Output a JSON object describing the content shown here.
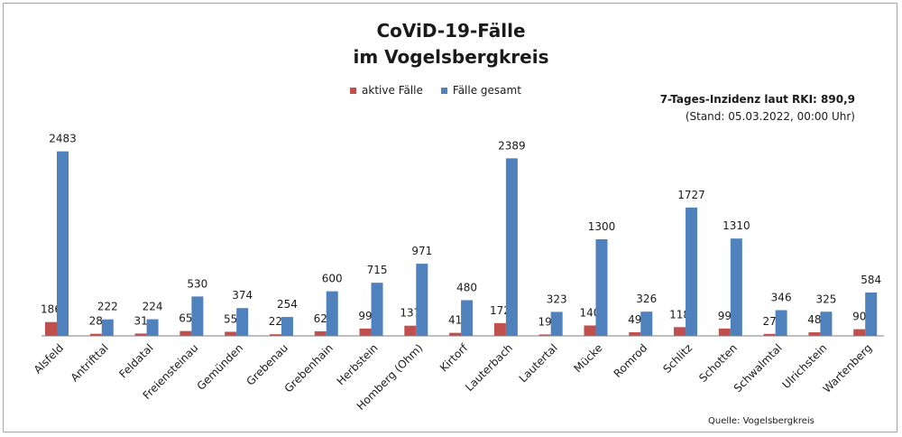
{
  "title_line1": "CoViD-19-Fälle",
  "title_line2": "im Vogelsbergkreis",
  "incidence_head": "7-Tages-Inzidenz laut RKI: 890,9",
  "incidence_stand": "(Stand: 05.03.2022, 00:00 Uhr)",
  "source": "Quelle: Vogelsbergkreis",
  "colors": {
    "active": "#c0504d",
    "total": "#4f81bd",
    "axis": "#7f7f7f"
  },
  "chart_data": {
    "type": "bar",
    "title": "CoViD-19-Fälle im Vogelsbergkreis",
    "legend_position": "top-center",
    "grid": false,
    "ylim": [
      0,
      2600
    ],
    "categories": [
      "Alsfeld",
      "Antrifttal",
      "Feldatal",
      "Freiensteinau",
      "Gemünden",
      "Grebenau",
      "Grebenhain",
      "Herbstein",
      "Homberg (Ohm)",
      "Kirtorf",
      "Lauterbach",
      "Lautertal",
      "Mücke",
      "Romrod",
      "Schlitz",
      "Schotten",
      "Schwalmtal",
      "Ulrichstein",
      "Wartenberg"
    ],
    "series": [
      {
        "name": "aktive Fälle",
        "values": [
          186,
          28,
          31,
          65,
          55,
          22,
          62,
          99,
          137,
          41,
          172,
          19,
          140,
          49,
          118,
          99,
          27,
          48,
          90
        ]
      },
      {
        "name": "Fälle gesamt",
        "values": [
          2483,
          222,
          224,
          530,
          374,
          254,
          600,
          715,
          971,
          480,
          2389,
          323,
          1300,
          326,
          1727,
          1310,
          346,
          325,
          584
        ]
      }
    ]
  }
}
